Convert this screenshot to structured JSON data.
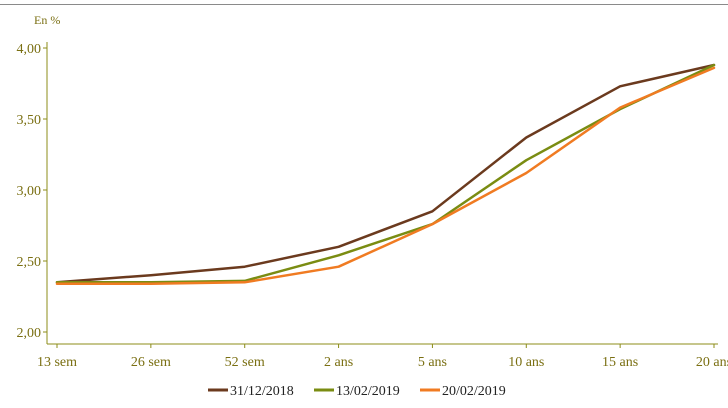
{
  "chart_data": {
    "type": "line",
    "ylabel": "En %",
    "categories": [
      "13 sem",
      "26 sem",
      "52 sem",
      "2 ans",
      "5 ans",
      "10 ans",
      "15 ans",
      "20 ans"
    ],
    "y_ticks": [
      "2,00",
      "2,50",
      "3,00",
      "3,50",
      "4,00"
    ],
    "ylim": [
      2.0,
      4.0
    ],
    "grid": false,
    "legend_position": "bottom",
    "series": [
      {
        "name": "31/12/2018",
        "color": "#6b3a1e",
        "values": [
          2.35,
          2.4,
          2.46,
          2.6,
          2.85,
          3.37,
          3.73,
          3.88
        ]
      },
      {
        "name": "13/02/2019",
        "color": "#7a8c12",
        "values": [
          2.35,
          2.35,
          2.36,
          2.54,
          2.76,
          3.21,
          3.57,
          3.88
        ]
      },
      {
        "name": "20/02/2019",
        "color": "#f07b22",
        "values": [
          2.34,
          2.34,
          2.35,
          2.46,
          2.76,
          3.12,
          3.58,
          3.86
        ]
      }
    ],
    "axis_color": "#8c8c1a",
    "tick_label_color": "#7a6f12"
  }
}
